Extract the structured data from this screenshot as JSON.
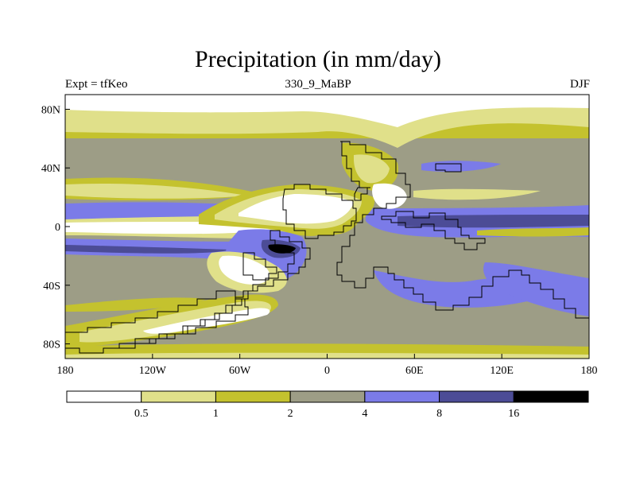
{
  "chart_data": {
    "type": "heatmap",
    "title": "Precipitation (in mm/day)",
    "left_label": "Expt = tfKeo",
    "center_label": "330_9_MaBP",
    "right_label": "DJF",
    "x_ticks": [
      "180",
      "120W",
      "60W",
      "0",
      "60E",
      "120E",
      "180"
    ],
    "y_ticks": [
      "80N",
      "40N",
      "0",
      "40S",
      "80S"
    ],
    "xlim": [
      -180,
      180
    ],
    "ylim": [
      -90,
      90
    ],
    "colorbar": {
      "boundaries": [
        "0.5",
        "1",
        "2",
        "4",
        "8",
        "16"
      ],
      "colors": [
        "#ffffff",
        "#e0e08a",
        "#c4c22e",
        "#9d9d86",
        "#7b7be8",
        "#4c4c96",
        "#000000"
      ]
    }
  }
}
